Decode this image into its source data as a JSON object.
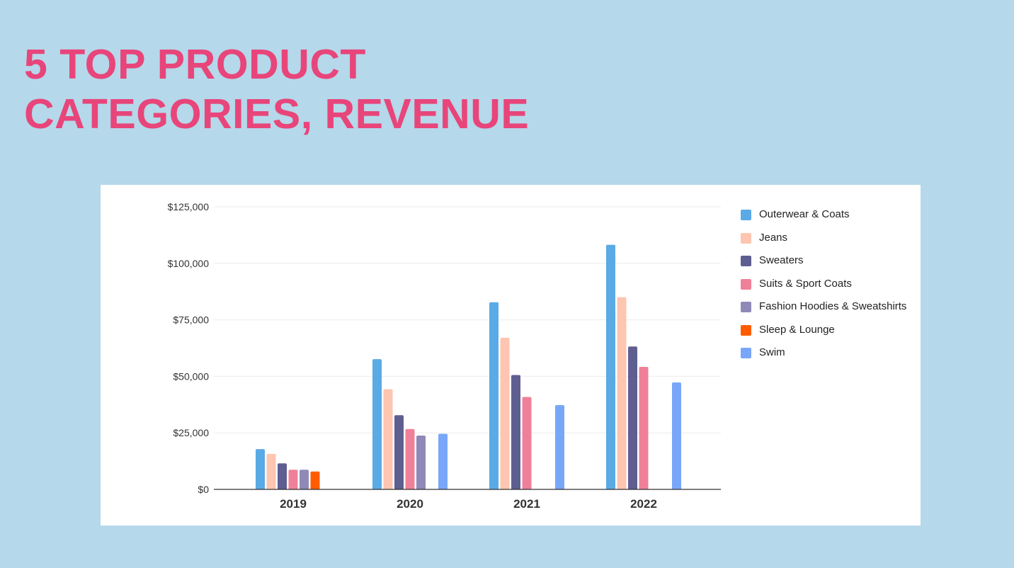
{
  "slide": {
    "title": "5 TOP PRODUCT CATEGORIES, REVENUE"
  },
  "chart_data": {
    "type": "bar",
    "title": "",
    "xlabel": "",
    "ylabel": "",
    "categories": [
      "2019",
      "2020",
      "2021",
      "2022"
    ],
    "ylim": [
      0,
      125000
    ],
    "yticks": [
      {
        "value": 0,
        "label": "$0"
      },
      {
        "value": 25000,
        "label": "$25,000"
      },
      {
        "value": 50000,
        "label": "$50,000"
      },
      {
        "value": 75000,
        "label": "$75,000"
      },
      {
        "value": 100000,
        "label": "$100,000"
      },
      {
        "value": 125000,
        "label": "$125,000"
      }
    ],
    "grid": true,
    "legend_position": "right",
    "series": [
      {
        "name": "Outerwear & Coats",
        "color": "#5aaae6",
        "values": [
          17800,
          57600,
          82800,
          108200
        ]
      },
      {
        "name": "Jeans",
        "color": "#fec5b0",
        "values": [
          15700,
          44300,
          67100,
          85000
        ]
      },
      {
        "name": "Sweaters",
        "color": "#5f5e91",
        "values": [
          11500,
          32800,
          50600,
          63200
        ]
      },
      {
        "name": "Suits & Sport Coats",
        "color": "#ef8099",
        "values": [
          8700,
          26700,
          40900,
          54200
        ]
      },
      {
        "name": "Fashion Hoodies & Sweatshirts",
        "color": "#8e89b7",
        "values": [
          8700,
          23800,
          null,
          null
        ]
      },
      {
        "name": "Sleep & Lounge",
        "color": "#ff5c00",
        "values": [
          7900,
          null,
          null,
          null
        ]
      },
      {
        "name": "Swim",
        "color": "#78a7f9",
        "values": [
          null,
          24600,
          37300,
          47300
        ]
      }
    ]
  }
}
